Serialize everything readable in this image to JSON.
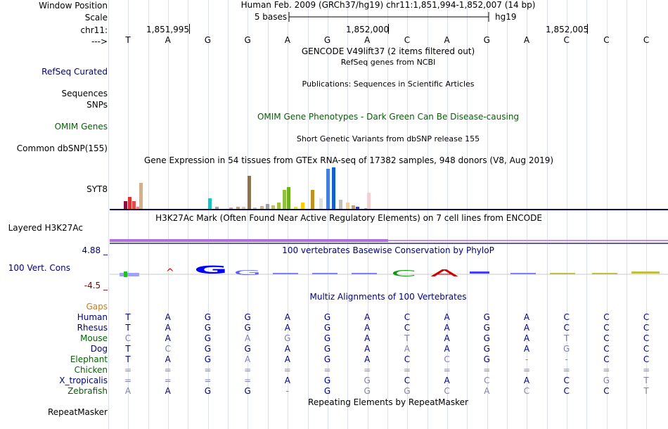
{
  "labels": {
    "window_position": "Window Position",
    "scale": "Scale",
    "chrom": "chr11:",
    "strand": "--->",
    "refseq": "RefSeq Curated",
    "sequences": "Sequences",
    "snps": "SNPs",
    "omim_genes": "OMIM Genes",
    "common_dbsnp": "Common dbSNP(155)",
    "syt8": "SYT8",
    "layered": "Layered H3K27Ac",
    "cons_max": "4.88 _",
    "cons_label": "100 Vert. Cons",
    "cons_min": "-4.5 _",
    "gaps": "Gaps",
    "repeatmasker": "RepeatMasker"
  },
  "header": {
    "position_text": "Human Feb. 2009 (GRCh37/hg19)   chr11:1,851,994-1,852,007 (14 bp)",
    "scale_text": "5 bases",
    "assembly": "hg19",
    "ticks": [
      "1,851,995",
      "1,852,000",
      "1,852,005"
    ]
  },
  "bases": [
    "T",
    "A",
    "G",
    "G",
    "A",
    "G",
    "A",
    "C",
    "A",
    "G",
    "A",
    "C",
    "C",
    "C"
  ],
  "tracks": {
    "gencode": "GENCODE V49lift37 (2 items filtered out)",
    "refseq_desc": "RefSeq genes from NCBI",
    "publications": "Publications: Sequences in Scientific Articles",
    "omim_desc": "OMIM Gene Phenotypes - Dark Green Can Be Disease-causing",
    "dbsnp_desc": "Short Genetic Variants from dbSNP release 155",
    "gtex_desc": "Gene Expression in 54 tissues from GTEx RNA-seq of 17382 samples, 948 donors (V8, Aug 2019)",
    "h3k27_desc": "H3K27Ac Mark (Often Found Near Active Regulatory Elements) on 7 cell lines from ENCODE",
    "phylop_desc": "100 vertebrates Basewise Conservation by PhyloP",
    "multiz_desc": "Multiz Alignments of 100 Vertebrates",
    "repeat_desc": "Repeating Elements by RepeatMasker"
  },
  "species": [
    {
      "name": "Human",
      "color": "#000080",
      "bases": [
        "T",
        "A",
        "G",
        "G",
        "A",
        "G",
        "A",
        "C",
        "A",
        "G",
        "A",
        "C",
        "C",
        "C"
      ]
    },
    {
      "name": "Rhesus",
      "color": "#000080",
      "bases": [
        "T",
        "A",
        "G",
        "G",
        "A",
        "G",
        "A",
        "C",
        "A",
        "G",
        "A",
        "C",
        "C",
        "C"
      ]
    },
    {
      "name": "Mouse",
      "color": "#006400",
      "bases": [
        "C",
        "A",
        "G",
        "A",
        "G",
        "G",
        "A",
        "T",
        "A",
        "G",
        "A",
        "T",
        "C",
        "C"
      ]
    },
    {
      "name": "Dog",
      "color": "#000080",
      "bases": [
        "T",
        "C",
        "G",
        "G",
        "A",
        "G",
        "A",
        "A",
        "A",
        "G",
        "A",
        "G",
        "C",
        "C"
      ]
    },
    {
      "name": "Elephant",
      "color": "#006400",
      "bases": [
        "T",
        "A",
        "G",
        "A",
        "A",
        "G",
        "A",
        "C",
        "C",
        "G",
        "-",
        "-",
        "C",
        "C"
      ]
    },
    {
      "name": "Chicken",
      "color": "#006400",
      "bases": [
        "=",
        "=",
        "=",
        "=",
        "=",
        "=",
        "=",
        "=",
        "=",
        "=",
        "=",
        "=",
        "=",
        "="
      ]
    },
    {
      "name": "X_tropicalis",
      "color": "#000080",
      "bases": [
        "=",
        "=",
        "=",
        "=",
        "A",
        "G",
        "G",
        "C",
        "A",
        "C",
        "A",
        "C",
        "G",
        "T"
      ]
    },
    {
      "name": "Zebrafish",
      "color": "#006400",
      "bases": [
        "A",
        "A",
        "G",
        "G",
        "-",
        "G",
        "G",
        "G",
        "C",
        "A",
        "C",
        "C",
        "C",
        "T"
      ]
    }
  ],
  "colors": {
    "label_blue": "#000080",
    "label_green": "#006400",
    "gaps_orange": "#d08000",
    "cons_max_color": "#000080",
    "cons_min_color": "#800000",
    "conserved": "#000080",
    "diverged": "#8080b0"
  }
}
